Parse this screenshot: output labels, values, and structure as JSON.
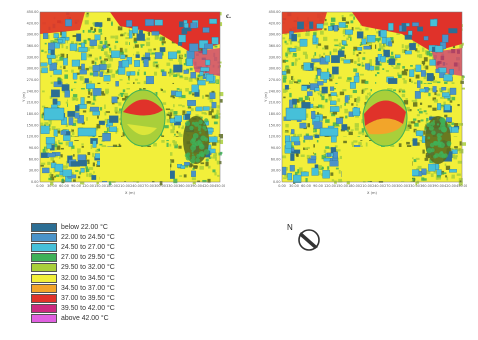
{
  "panels": [
    {
      "id": "left",
      "letter": "c.",
      "x_ticks": [
        "0.00",
        "30.00",
        "60.00",
        "90.00",
        "120.00",
        "150.00",
        "180.00",
        "210.00",
        "240.00",
        "270.00",
        "300.00",
        "330.00",
        "360.00",
        "390.00",
        "420.00",
        "450.00"
      ],
      "y_ticks": [
        "450.00",
        "420.00",
        "390.00",
        "360.00",
        "330.00",
        "300.00",
        "270.00",
        "240.00",
        "210.00",
        "180.00",
        "150.00",
        "120.00",
        "90.00",
        "60.00",
        "30.00",
        "0.00"
      ],
      "x_label": "X (m)",
      "y_label": "Y (m)"
    },
    {
      "id": "right",
      "letter": "",
      "x_ticks": [
        "0.00",
        "30.00",
        "60.00",
        "90.00",
        "120.00",
        "150.00",
        "180.00",
        "210.00",
        "240.00",
        "270.00",
        "300.00",
        "330.00",
        "360.00",
        "390.00",
        "420.00",
        "450.00"
      ],
      "y_ticks": [
        "450.00",
        "420.00",
        "390.00",
        "360.00",
        "330.00",
        "300.00",
        "270.00",
        "240.00",
        "210.00",
        "180.00",
        "150.00",
        "120.00",
        "90.00",
        "60.00",
        "30.00",
        "0.00"
      ],
      "x_label": "X (m)",
      "y_label": "Y (m)"
    }
  ],
  "legend": {
    "items": [
      {
        "label": "below 22.00 °C",
        "color": "#2c6e94"
      },
      {
        "label": "22.00 to 24.50 °C",
        "color": "#4a93c9"
      },
      {
        "label": "24.50 to 27.00 °C",
        "color": "#46c0d9"
      },
      {
        "label": "27.00 to 29.50 °C",
        "color": "#3eb158"
      },
      {
        "label": "29.50 to 32.00 °C",
        "color": "#a9cf3a"
      },
      {
        "label": "32.00 to 34.50 °C",
        "color": "#f2ef3a"
      },
      {
        "label": "34.50 to 37.00 °C",
        "color": "#f2a52a"
      },
      {
        "label": "37.00 to 39.50 °C",
        "color": "#e0322a"
      },
      {
        "label": "39.50 to 42.00 °C",
        "color": "#cc2a7f"
      },
      {
        "label": "above 42.00 °C",
        "color": "#e060e0"
      }
    ]
  },
  "north_arrow": {
    "letter": "N",
    "icon": "north-arrow-icon"
  },
  "palette": {
    "water_blue": "#2c6e94",
    "roof_blue": "#4a93c9",
    "roof_cyan": "#46c0d9",
    "tree_green": "#3eb158",
    "grass": "#a9cf3a",
    "pavement": "#f2ef3a",
    "warm": "#f2a52a",
    "hot": "#e0322a",
    "magenta": "#cc2a7f",
    "dark_canopy": "#5b6b1e"
  }
}
